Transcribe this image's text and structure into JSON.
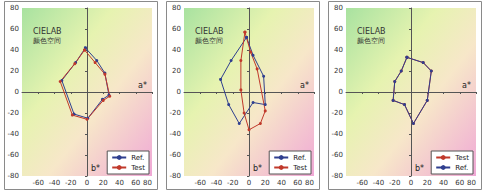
{
  "chart_data": [
    {
      "type": "line",
      "title": "CIELAB",
      "subtitle": "颜色空间",
      "x_label": "a*",
      "y_label": "b*",
      "xlim": [
        -80,
        80
      ],
      "xticks": [
        -80,
        -60,
        -40,
        -20,
        0,
        20,
        40,
        60,
        80
      ],
      "ylim": [
        -80,
        80
      ],
      "yticks": [
        -80,
        -60,
        -40,
        -20,
        0,
        20,
        40,
        60,
        80
      ],
      "grid": false,
      "legend": "bottom right",
      "series": [
        {
          "name": "Ref.",
          "color": "#2f3f8f",
          "marker": "circle",
          "x": [
            -2,
            12,
            22,
            27,
            19,
            1,
            -16,
            -31,
            -14,
            -2
          ],
          "values": [
            42,
            30,
            18,
            -3,
            -7,
            -25,
            -21,
            11,
            28,
            42
          ]
        },
        {
          "name": "Test",
          "color": "#c0392b",
          "marker": "circle",
          "x": [
            -3,
            10,
            22,
            28,
            20,
            0,
            -18,
            -33,
            -15,
            -3
          ],
          "values": [
            40,
            28,
            17,
            -4,
            -8,
            -26,
            -22,
            10,
            27,
            40
          ]
        }
      ]
    },
    {
      "type": "line",
      "title": "CIELAB",
      "subtitle": "颜色空间",
      "x_label": "a*",
      "y_label": "b*",
      "xlim": [
        -80,
        80
      ],
      "xticks": [
        -80,
        -60,
        -40,
        -20,
        0,
        20,
        40,
        60,
        80
      ],
      "ylim": [
        -80,
        80
      ],
      "yticks": [
        -80,
        -60,
        -40,
        -20,
        0,
        20,
        40,
        60,
        80
      ],
      "grid": false,
      "legend": "bottom right",
      "series": [
        {
          "name": "Ref.",
          "color": "#2f3f8f",
          "marker": "circle",
          "x": [
            -3,
            5,
            18,
            20,
            5,
            -12,
            -25,
            -35,
            -22,
            -3
          ],
          "values": [
            52,
            35,
            15,
            -12,
            -10,
            -30,
            -12,
            12,
            30,
            52
          ]
        },
        {
          "name": "Test",
          "color": "#c0392b",
          "marker": "circle",
          "x": [
            -5,
            2,
            10,
            20,
            14,
            0,
            -6,
            -10,
            -10,
            -5
          ],
          "values": [
            57,
            38,
            22,
            -18,
            -30,
            -36,
            -20,
            2,
            30,
            57
          ]
        }
      ]
    },
    {
      "type": "line",
      "title": "CIELAB",
      "subtitle": "颜色空间",
      "x_label": "a*",
      "y_label": "b*",
      "xlim": [
        -80,
        80
      ],
      "xticks": [
        -80,
        -60,
        -40,
        -20,
        0,
        20,
        40,
        60,
        80
      ],
      "ylim": [
        -80,
        80
      ],
      "yticks": [
        -80,
        -60,
        -40,
        -20,
        0,
        20,
        40,
        60,
        80
      ],
      "grid": false,
      "legend": "bottom right",
      "series": [
        {
          "name": "Test",
          "color": "#c0392b",
          "marker": "circle",
          "x": [
            -5,
            15,
            25,
            20,
            3,
            -8,
            -22,
            -20,
            -12,
            -5
          ],
          "values": [
            33,
            28,
            20,
            -8,
            -30,
            -12,
            -8,
            10,
            20,
            33
          ]
        },
        {
          "name": "Ref.",
          "color": "#2f3f8f",
          "marker": "circle",
          "x": [
            -5,
            15,
            25,
            20,
            3,
            -8,
            -22,
            -20,
            -12,
            -5
          ],
          "values": [
            33,
            28,
            20,
            -8,
            -30,
            -12,
            -8,
            10,
            20,
            33
          ]
        }
      ]
    }
  ]
}
